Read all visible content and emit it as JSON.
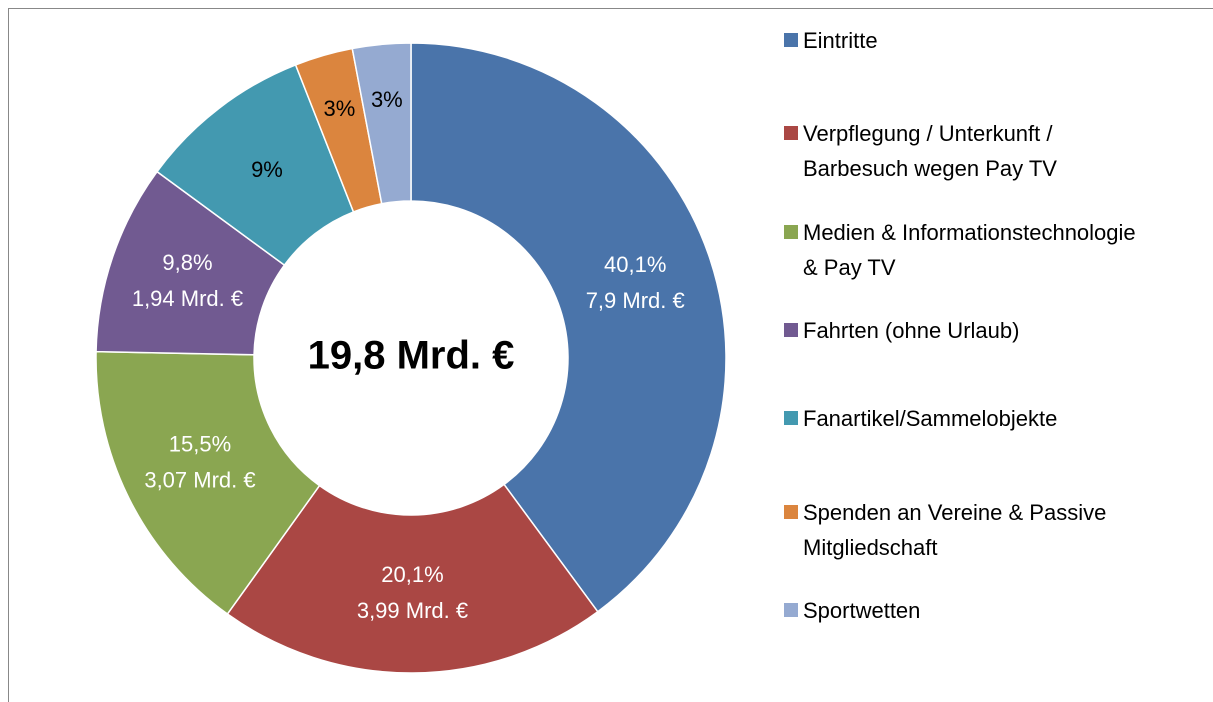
{
  "chart_data": {
    "type": "donut",
    "center_label": "19,8 Mrd. €",
    "categories": [
      "Eintritte",
      "Verpflegung / Unterkunft / Barbesuch wegen Pay TV",
      "Medien & Informationstechnologie & Pay TV",
      "Fahrten (ohne Urlaub)",
      "Fanartikel/Sammelobjekte",
      "Spenden an Vereine & Passive Mitgliedschaft",
      "Sportwetten"
    ],
    "values": [
      40.1,
      20.1,
      15.5,
      9.8,
      9,
      3,
      3
    ],
    "value_labels": [
      [
        "40,1%",
        "7,9 Mrd. €"
      ],
      [
        "20,1%",
        "3,99 Mrd. €"
      ],
      [
        "15,5%",
        "3,07 Mrd. €"
      ],
      [
        "9,8%",
        "1,94 Mrd. €"
      ],
      [
        "9%"
      ],
      [
        "3%"
      ],
      [
        "3%"
      ]
    ],
    "colors": [
      "#4a74aa",
      "#aa4744",
      "#8aa651",
      "#715a91",
      "#4399b0",
      "#db853e",
      "#95aad1"
    ],
    "label_colors": [
      "#ffffff",
      "#ffffff",
      "#ffffff",
      "#ffffff",
      "#000000",
      "#000000",
      "#000000"
    ],
    "legend": "right"
  }
}
